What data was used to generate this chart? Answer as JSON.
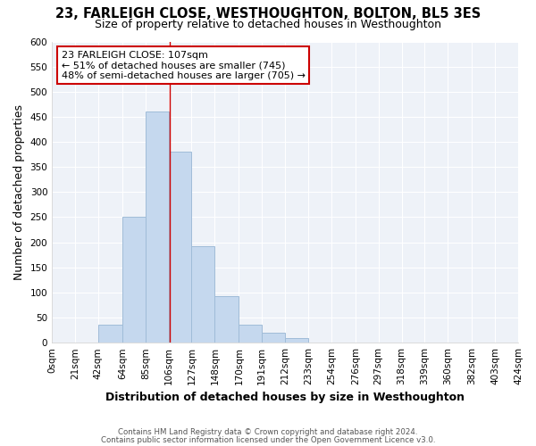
{
  "title": "23, FARLEIGH CLOSE, WESTHOUGHTON, BOLTON, BL5 3ES",
  "subtitle": "Size of property relative to detached houses in Westhoughton",
  "xlabel": "Distribution of detached houses by size in Westhoughton",
  "ylabel": "Number of detached properties",
  "bar_edges": [
    0,
    21,
    42,
    64,
    85,
    106,
    127,
    148,
    170,
    191,
    212,
    233,
    254,
    276,
    297,
    318,
    339,
    360,
    382,
    403,
    424
  ],
  "bar_heights": [
    0,
    0,
    35,
    250,
    460,
    380,
    192,
    93,
    35,
    20,
    10,
    0,
    0,
    0,
    0,
    0,
    0,
    0,
    0,
    0
  ],
  "bar_color": "#c5d8ee",
  "bar_edge_color": "#a0bcd8",
  "vline_x": 107,
  "vline_color": "#cc0000",
  "annotation_text": "23 FARLEIGH CLOSE: 107sqm\n← 51% of detached houses are smaller (745)\n48% of semi-detached houses are larger (705) →",
  "annotation_bbox_color": "#ffffff",
  "annotation_bbox_edgecolor": "#cc0000",
  "ylim": [
    0,
    600
  ],
  "yticks": [
    0,
    50,
    100,
    150,
    200,
    250,
    300,
    350,
    400,
    450,
    500,
    550,
    600
  ],
  "background_color": "#ffffff",
  "plot_bg_color": "#eef2f8",
  "grid_color": "#ffffff",
  "title_fontsize": 10.5,
  "subtitle_fontsize": 9,
  "axis_label_fontsize": 9,
  "tick_fontsize": 7.5,
  "footnote1": "Contains HM Land Registry data © Crown copyright and database right 2024.",
  "footnote2": "Contains public sector information licensed under the Open Government Licence v3.0."
}
